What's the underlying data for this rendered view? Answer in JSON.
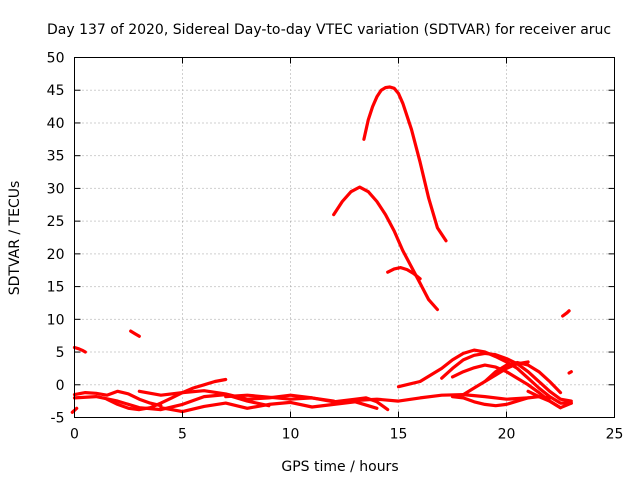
{
  "chart_data": {
    "type": "scatter",
    "title": "Day 137 of 2020, Sidereal Day-to-day VTEC variation (SDTVAR) for receiver aruc",
    "xlabel": "GPS time / hours",
    "ylabel": "SDTVAR / TECUs",
    "xlim": [
      0,
      25
    ],
    "ylim": [
      -5,
      50
    ],
    "xticks": [
      0,
      5,
      10,
      15,
      20,
      25
    ],
    "yticks": [
      -5,
      0,
      5,
      10,
      15,
      20,
      25,
      30,
      35,
      40,
      45,
      50
    ],
    "grid": true,
    "color": "#ff0000",
    "series": [
      {
        "name": "arc-peak-45",
        "x": [
          13.4,
          13.6,
          13.8,
          14.0,
          14.2,
          14.4,
          14.6,
          14.8,
          15.0,
          15.2,
          15.6,
          16.0,
          16.4,
          16.8,
          17.2
        ],
        "y": [
          37.5,
          40.5,
          42.5,
          44.0,
          45.0,
          45.4,
          45.5,
          45.3,
          44.5,
          43.0,
          39.0,
          34.0,
          28.5,
          24.0,
          22.0
        ]
      },
      {
        "name": "arc-peak-30",
        "x": [
          12.0,
          12.4,
          12.8,
          13.2,
          13.6,
          14.0,
          14.4,
          14.8,
          15.2,
          15.6,
          16.0,
          16.4,
          16.8
        ],
        "y": [
          26.0,
          28.0,
          29.5,
          30.2,
          29.5,
          28.0,
          26.0,
          23.5,
          20.5,
          18.0,
          15.5,
          13.0,
          11.5
        ]
      },
      {
        "name": "arc-peak-18",
        "x": [
          14.5,
          14.8,
          15.1,
          15.4,
          15.7,
          16.0
        ],
        "y": [
          17.2,
          17.7,
          17.9,
          17.6,
          17.0,
          16.2
        ]
      },
      {
        "name": "seg-a",
        "x": [
          0.0,
          0.2,
          0.4,
          0.5
        ],
        "y": [
          5.7,
          5.5,
          5.2,
          5.0
        ]
      },
      {
        "name": "seg-b",
        "x": [
          2.6,
          2.8,
          3.0
        ],
        "y": [
          8.2,
          7.8,
          7.4
        ]
      },
      {
        "name": "seg-c",
        "x": [
          22.6,
          22.8,
          22.9
        ],
        "y": [
          10.5,
          11.0,
          11.3
        ]
      },
      {
        "name": "seg-d",
        "x": [
          -0.1,
          0.1
        ],
        "y": [
          -4.2,
          -3.6
        ]
      },
      {
        "name": "seg-e",
        "x": [
          22.9,
          23.0
        ],
        "y": [
          1.8,
          2.0
        ]
      },
      {
        "name": "arc-1",
        "x": [
          0.0,
          0.5,
          1.0,
          1.5,
          2.0,
          2.5,
          3.0,
          3.5,
          4.0
        ],
        "y": [
          -1.5,
          -1.2,
          -1.3,
          -1.6,
          -1.0,
          -1.4,
          -2.2,
          -2.8,
          -3.2
        ]
      },
      {
        "name": "arc-2",
        "x": [
          0.0,
          1.0,
          2.0,
          3.0,
          4.0,
          5.0,
          6.0,
          7.0,
          8.0,
          9.0
        ],
        "y": [
          -2.0,
          -1.8,
          -2.5,
          -3.5,
          -3.8,
          -3.0,
          -1.8,
          -1.5,
          -2.5,
          -3.2
        ]
      },
      {
        "name": "arc-3",
        "x": [
          1.5,
          2.0,
          2.5,
          3.0,
          3.5,
          4.0,
          4.5,
          5.0,
          5.5,
          6.0,
          6.5,
          7.0
        ],
        "y": [
          -2.2,
          -3.0,
          -3.6,
          -3.8,
          -3.5,
          -2.8,
          -2.0,
          -1.2,
          -0.5,
          0.0,
          0.5,
          0.8
        ]
      },
      {
        "name": "arc-4",
        "x": [
          3.0,
          4.0,
          5.0,
          6.0,
          7.0,
          8.0,
          9.0,
          10.0,
          11.0,
          12.0
        ],
        "y": [
          -1.0,
          -1.6,
          -1.2,
          -0.9,
          -1.4,
          -2.2,
          -2.0,
          -1.6,
          -2.0,
          -2.5
        ]
      },
      {
        "name": "arc-5",
        "x": [
          4.0,
          5.0,
          6.0,
          7.0,
          8.0,
          9.0,
          10.0,
          11.0,
          12.0,
          13.0,
          14.0
        ],
        "y": [
          -3.5,
          -4.1,
          -3.3,
          -2.8,
          -3.6,
          -3.0,
          -2.7,
          -3.4,
          -3.0,
          -2.6,
          -3.6
        ]
      },
      {
        "name": "arc-6",
        "x": [
          7.0,
          8.0,
          9.0,
          10.0,
          11.0,
          12.0,
          13.0,
          14.0,
          15.0,
          16.0,
          17.0,
          18.0,
          19.0,
          20.0,
          21.0
        ],
        "y": [
          -1.8,
          -1.6,
          -1.9,
          -2.2,
          -2.0,
          -2.6,
          -2.4,
          -2.2,
          -2.5,
          -2.0,
          -1.6,
          -1.5,
          -1.8,
          -2.2,
          -2.0
        ]
      },
      {
        "name": "arc-7",
        "x": [
          12.0,
          13.0,
          13.5,
          14.0,
          14.5
        ],
        "y": [
          -2.6,
          -2.2,
          -2.0,
          -2.6,
          -3.8
        ]
      },
      {
        "name": "arc-8",
        "x": [
          15.0,
          16.0,
          17.0,
          17.5,
          18.0,
          18.5,
          19.0,
          19.5,
          20.0,
          20.5,
          21.0,
          21.5,
          22.0,
          22.5,
          23.0
        ],
        "y": [
          -0.3,
          0.5,
          2.5,
          3.8,
          4.8,
          5.3,
          5.0,
          4.3,
          3.5,
          2.5,
          1.0,
          -0.5,
          -1.8,
          -2.8,
          -2.8
        ]
      },
      {
        "name": "arc-9",
        "x": [
          17.0,
          17.5,
          18.0,
          18.5,
          19.0,
          19.5,
          20.0,
          20.5,
          21.0,
          21.5,
          22.0,
          22.5,
          23.0
        ],
        "y": [
          1.0,
          2.5,
          3.8,
          4.5,
          4.8,
          4.6,
          4.0,
          3.2,
          2.0,
          0.5,
          -1.0,
          -2.2,
          -2.5
        ]
      },
      {
        "name": "arc-10",
        "x": [
          17.5,
          18.0,
          18.5,
          19.0,
          19.5,
          20.0,
          20.5,
          21.0,
          21.5,
          22.0,
          22.5
        ],
        "y": [
          1.2,
          2.0,
          2.6,
          3.0,
          2.7,
          2.0,
          1.0,
          0.0,
          -1.2,
          -2.5,
          -3.5
        ]
      },
      {
        "name": "arc-11",
        "x": [
          18.0,
          18.5,
          19.0,
          19.5,
          20.0,
          20.5,
          21.0
        ],
        "y": [
          -1.5,
          -0.5,
          0.5,
          1.5,
          2.5,
          3.2,
          3.5
        ]
      },
      {
        "name": "arc-12",
        "x": [
          17.5,
          18.0,
          18.5,
          19.0,
          19.5,
          20.0,
          20.5,
          21.0,
          21.5,
          22.0
        ],
        "y": [
          -1.8,
          -2.0,
          -2.6,
          -3.0,
          -3.2,
          -3.0,
          -2.5,
          -2.0,
          -1.8,
          -2.0
        ]
      },
      {
        "name": "arc-13",
        "x": [
          19.0,
          19.5,
          20.0,
          20.5,
          21.0,
          21.5,
          22.0,
          22.5
        ],
        "y": [
          0.5,
          2.0,
          3.0,
          3.4,
          3.0,
          2.0,
          0.5,
          -1.2
        ]
      },
      {
        "name": "arc-14",
        "x": [
          21.0,
          21.5,
          22.0,
          22.5,
          23.0
        ],
        "y": [
          -1.0,
          -1.8,
          -2.5,
          -3.5,
          -2.8
        ]
      }
    ]
  }
}
